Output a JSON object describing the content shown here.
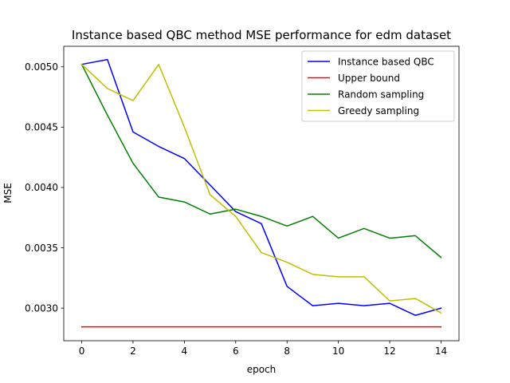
{
  "chart_data": {
    "type": "line",
    "title": "Instance based QBC method MSE performance for edm dataset",
    "xlabel": "epoch",
    "ylabel": "MSE",
    "xlim": [
      -0.7,
      14.7
    ],
    "ylim": [
      0.00273,
      0.00517
    ],
    "xticks": [
      0,
      2,
      4,
      6,
      8,
      10,
      12,
      14
    ],
    "xtick_labels": [
      "0",
      "2",
      "4",
      "6",
      "8",
      "10",
      "12",
      "14"
    ],
    "yticks": [
      0.003,
      0.0035,
      0.004,
      0.0045,
      0.005
    ],
    "ytick_labels": [
      "0.0030",
      "0.0035",
      "0.0040",
      "0.0045",
      "0.0050"
    ],
    "grid": false,
    "legend_position": "top-right",
    "x": [
      0,
      1,
      2,
      3,
      4,
      5,
      6,
      7,
      8,
      9,
      10,
      11,
      12,
      13,
      14
    ],
    "series": [
      {
        "name": "Instance based QBC",
        "color": "#0000ff",
        "values": [
          0.00502,
          0.00506,
          0.00446,
          0.00434,
          0.00424,
          0.00402,
          0.0038,
          0.0037,
          0.00318,
          0.00302,
          0.00304,
          0.00302,
          0.00304,
          0.00294,
          0.003
        ]
      },
      {
        "name": "Upper bound",
        "color": "#ff0000",
        "values": [
          0.002845,
          0.002845,
          0.002845,
          0.002845,
          0.002845,
          0.002845,
          0.002845,
          0.002845,
          0.002845,
          0.002845,
          0.002845,
          0.002845,
          0.002845,
          0.002845,
          0.002845
        ]
      },
      {
        "name": "Random sampling",
        "color": "#008000",
        "values": [
          0.00502,
          0.0046,
          0.0042,
          0.00392,
          0.00388,
          0.00378,
          0.00382,
          0.00376,
          0.00368,
          0.00376,
          0.00358,
          0.00366,
          0.00358,
          0.0036,
          0.00342
        ]
      },
      {
        "name": "Greedy sampling",
        "color": "#bfbf00",
        "values": [
          0.00502,
          0.00482,
          0.00472,
          0.00502,
          0.0045,
          0.00394,
          0.00376,
          0.00346,
          0.00338,
          0.00328,
          0.00326,
          0.00326,
          0.00306,
          0.00308,
          0.00296
        ]
      }
    ]
  }
}
